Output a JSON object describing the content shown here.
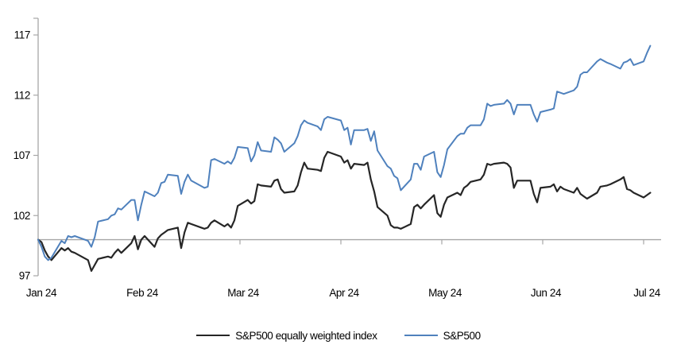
{
  "chart_data": {
    "type": "line",
    "title": "",
    "xlabel": "",
    "ylabel": "",
    "grid": false,
    "legend_position": "bottom",
    "background": "#ffffff",
    "axis_color": "#a6a6a6",
    "baseline_color": "#a6a6a6",
    "y_axis": {
      "min": 97,
      "max": 117,
      "ticks": [
        97,
        102,
        107,
        112,
        117
      ],
      "baseline": 100
    },
    "x_axis": {
      "labels": [
        "Jan 24",
        "Feb 24",
        "Mar 24",
        "Apr 24",
        "May 24",
        "Jun 24",
        "Jul 24"
      ],
      "start": "2024-01-01",
      "end": "2024-07-01"
    },
    "dates": [
      "01-01",
      "01-02",
      "01-03",
      "01-04",
      "01-05",
      "01-08",
      "01-09",
      "01-10",
      "01-11",
      "01-12",
      "01-16",
      "01-17",
      "01-18",
      "01-19",
      "01-22",
      "01-23",
      "01-24",
      "01-25",
      "01-26",
      "01-29",
      "01-30",
      "01-31",
      "02-01",
      "02-02",
      "02-05",
      "02-06",
      "02-07",
      "02-08",
      "02-09",
      "02-12",
      "02-13",
      "02-14",
      "02-15",
      "02-16",
      "02-20",
      "02-21",
      "02-22",
      "02-23",
      "02-26",
      "02-27",
      "02-28",
      "02-29",
      "03-01",
      "03-04",
      "03-05",
      "03-06",
      "03-07",
      "03-08",
      "03-11",
      "03-12",
      "03-13",
      "03-14",
      "03-15",
      "03-18",
      "03-19",
      "03-20",
      "03-21",
      "03-22",
      "03-25",
      "03-26",
      "03-27",
      "03-28",
      "04-01",
      "04-02",
      "04-03",
      "04-04",
      "04-05",
      "04-08",
      "04-09",
      "04-10",
      "04-11",
      "04-12",
      "04-15",
      "04-16",
      "04-17",
      "04-18",
      "04-19",
      "04-22",
      "04-23",
      "04-24",
      "04-25",
      "04-26",
      "04-29",
      "04-30",
      "05-01",
      "05-02",
      "05-03",
      "05-06",
      "05-07",
      "05-08",
      "05-09",
      "05-10",
      "05-13",
      "05-14",
      "05-15",
      "05-16",
      "05-17",
      "05-20",
      "05-21",
      "05-22",
      "05-23",
      "05-24",
      "05-28",
      "05-29",
      "05-30",
      "05-31",
      "06-03",
      "06-04",
      "06-05",
      "06-06",
      "06-07",
      "06-10",
      "06-11",
      "06-12",
      "06-13",
      "06-14",
      "06-17",
      "06-18",
      "06-20",
      "06-21",
      "06-24",
      "06-25",
      "06-26",
      "06-27",
      "06-28",
      "07-01",
      "07-02",
      "07-03"
    ],
    "series": [
      {
        "name": "S&P500 equally weighted index",
        "color": "#262626",
        "stroke_width": 2.2,
        "values": [
          100.0,
          99.8,
          99.1,
          98.6,
          98.3,
          99.3,
          99.1,
          99.3,
          99.0,
          98.9,
          98.3,
          97.4,
          97.9,
          98.4,
          98.6,
          98.5,
          98.9,
          99.2,
          98.9,
          99.7,
          100.3,
          99.2,
          100.0,
          100.3,
          99.4,
          100.1,
          100.4,
          100.6,
          100.8,
          101.0,
          99.3,
          100.6,
          101.4,
          101.3,
          100.9,
          101.0,
          101.4,
          101.6,
          101.1,
          101.3,
          101.0,
          101.6,
          102.8,
          103.3,
          103.0,
          103.2,
          104.6,
          104.5,
          104.4,
          104.9,
          105.0,
          104.2,
          103.9,
          104.0,
          104.5,
          105.6,
          106.4,
          105.9,
          105.8,
          105.7,
          106.8,
          107.3,
          106.9,
          106.4,
          106.6,
          105.9,
          106.3,
          106.2,
          106.4,
          105.0,
          104.0,
          102.7,
          102.0,
          101.2,
          101.0,
          101.0,
          100.9,
          101.3,
          102.7,
          102.9,
          102.6,
          102.9,
          103.7,
          102.2,
          101.9,
          102.9,
          103.5,
          103.9,
          103.7,
          104.3,
          104.5,
          104.8,
          105.0,
          105.4,
          106.3,
          106.2,
          106.3,
          106.4,
          106.3,
          106.0,
          104.3,
          104.9,
          104.9,
          103.8,
          103.1,
          104.3,
          104.4,
          104.6,
          104.0,
          104.4,
          104.2,
          103.9,
          104.3,
          103.8,
          103.6,
          103.4,
          103.9,
          104.4,
          104.5,
          104.6,
          105.0,
          105.2,
          104.2,
          104.1,
          103.9,
          103.5,
          103.7,
          103.9
        ]
      },
      {
        "name": "S&P500",
        "color": "#4F81BD",
        "stroke_width": 2.0,
        "values": [
          100.0,
          99.4,
          98.6,
          98.3,
          98.5,
          99.9,
          99.7,
          100.3,
          100.2,
          100.3,
          99.9,
          99.4,
          100.2,
          101.5,
          101.7,
          102.0,
          102.1,
          102.6,
          102.5,
          103.3,
          103.3,
          101.6,
          102.9,
          104.0,
          103.6,
          103.9,
          104.7,
          104.8,
          105.4,
          105.3,
          103.8,
          104.8,
          105.4,
          104.9,
          104.3,
          104.4,
          106.6,
          106.7,
          106.3,
          106.5,
          106.3,
          106.8,
          107.7,
          107.6,
          106.5,
          107.0,
          108.1,
          107.4,
          107.3,
          108.5,
          108.3,
          108.0,
          107.3,
          108.0,
          108.6,
          109.5,
          109.9,
          109.7,
          109.4,
          109.1,
          110.0,
          110.2,
          109.9,
          109.1,
          109.3,
          107.9,
          109.1,
          109.1,
          109.2,
          108.2,
          109.0,
          107.4,
          106.1,
          105.9,
          105.3,
          105.1,
          104.1,
          105.0,
          106.3,
          106.3,
          105.8,
          106.9,
          107.3,
          105.6,
          105.2,
          106.2,
          107.5,
          108.6,
          108.8,
          108.8,
          109.3,
          109.5,
          109.5,
          110.0,
          111.3,
          111.1,
          111.2,
          111.3,
          111.6,
          111.3,
          110.4,
          111.2,
          111.2,
          110.4,
          109.8,
          110.6,
          110.8,
          110.9,
          112.3,
          112.2,
          112.1,
          112.4,
          112.7,
          113.7,
          113.9,
          113.9,
          114.8,
          115.0,
          114.7,
          114.6,
          114.2,
          114.7,
          114.8,
          115.0,
          114.5,
          114.8,
          115.5,
          116.1
        ]
      }
    ]
  }
}
